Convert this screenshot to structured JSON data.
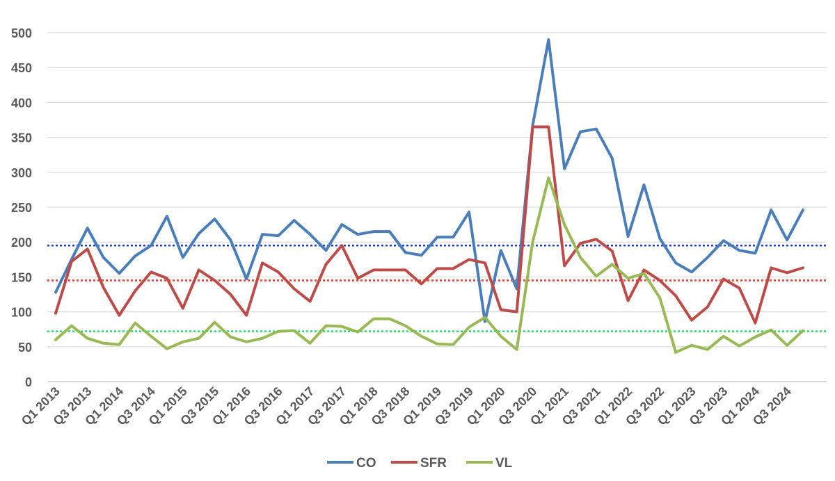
{
  "chart_data": {
    "type": "line",
    "title": "",
    "xlabel": "",
    "ylabel": "",
    "ylim": [
      0,
      500
    ],
    "yticks": [
      0,
      50,
      100,
      150,
      200,
      250,
      300,
      350,
      400,
      450,
      500
    ],
    "grid": "horizontal",
    "legend": "bottom",
    "x_tick_labels": [
      "Q1 2013",
      "Q3 2013",
      "Q1 2014",
      "Q3 2014",
      "Q1 2015",
      "Q3 2015",
      "Q1 2016",
      "Q3 2016",
      "Q1 2017",
      "Q3 2017",
      "Q1 2018",
      "Q3 2018",
      "Q1 2019",
      "Q3 2019",
      "Q1 2020",
      "Q3 2020",
      "Q1 2021",
      "Q3 2021",
      "Q1 2022",
      "Q3 2022",
      "Q1 2023",
      "Q3 2023",
      "Q1 2024",
      "Q3 2024"
    ],
    "categories": [
      "Q1 2013",
      "Q2 2013",
      "Q3 2013",
      "Q4 2013",
      "Q1 2014",
      "Q2 2014",
      "Q3 2014",
      "Q4 2014",
      "Q1 2015",
      "Q2 2015",
      "Q3 2015",
      "Q4 2015",
      "Q1 2016",
      "Q2 2016",
      "Q3 2016",
      "Q4 2016",
      "Q1 2017",
      "Q2 2017",
      "Q3 2017",
      "Q4 2017",
      "Q1 2018",
      "Q2 2018",
      "Q3 2018",
      "Q4 2018",
      "Q1 2019",
      "Q2 2019",
      "Q3 2019",
      "Q4 2019",
      "Q1 2020",
      "Q2 2020",
      "Q3 2020",
      "Q4 2020",
      "Q1 2021",
      "Q2 2021",
      "Q3 2021",
      "Q4 2021",
      "Q1 2022",
      "Q2 2022",
      "Q3 2022",
      "Q4 2022",
      "Q1 2023",
      "Q2 2023",
      "Q3 2023",
      "Q4 2023",
      "Q1 2024",
      "Q2 2024",
      "Q3 2024",
      "Q4 2024"
    ],
    "series": [
      {
        "name": "CO",
        "color": "#4a7ebb",
        "values": [
          128,
          175,
          220,
          178,
          155,
          180,
          195,
          237,
          178,
          212,
          233,
          203,
          147,
          211,
          209,
          231,
          211,
          188,
          225,
          211,
          215,
          215,
          185,
          181,
          207,
          207,
          243,
          86,
          188,
          133,
          367,
          490,
          305,
          358,
          362,
          320,
          208,
          282,
          205,
          170,
          157,
          178,
          202,
          188,
          184,
          246,
          203,
          246
        ]
      },
      {
        "name": "SFR",
        "color": "#be4b48",
        "values": [
          98,
          172,
          190,
          135,
          95,
          130,
          157,
          148,
          105,
          160,
          145,
          125,
          95,
          170,
          157,
          133,
          115,
          168,
          195,
          148,
          160,
          160,
          160,
          140,
          162,
          162,
          175,
          170,
          103,
          100,
          365,
          365,
          166,
          198,
          204,
          187,
          116,
          160,
          145,
          123,
          88,
          107,
          147,
          134,
          84,
          163,
          156,
          163
        ]
      },
      {
        "name": "VL",
        "color": "#98b954",
        "values": [
          60,
          80,
          62,
          55,
          53,
          84,
          65,
          47,
          57,
          62,
          85,
          64,
          57,
          62,
          72,
          73,
          55,
          80,
          79,
          71,
          90,
          90,
          80,
          65,
          54,
          53,
          78,
          92,
          65,
          46,
          200,
          292,
          225,
          178,
          151,
          168,
          148,
          155,
          120,
          42,
          52,
          46,
          65,
          51,
          64,
          74,
          52,
          73
        ]
      }
    ],
    "reference_lines": [
      {
        "series": "CO",
        "value": 195,
        "color": "#1f3fbf",
        "style": "dotted"
      },
      {
        "series": "SFR",
        "value": 145,
        "color": "#e0452b",
        "style": "dotted"
      },
      {
        "series": "VL",
        "value": 72,
        "color": "#2ee06a",
        "style": "dotted"
      }
    ]
  }
}
